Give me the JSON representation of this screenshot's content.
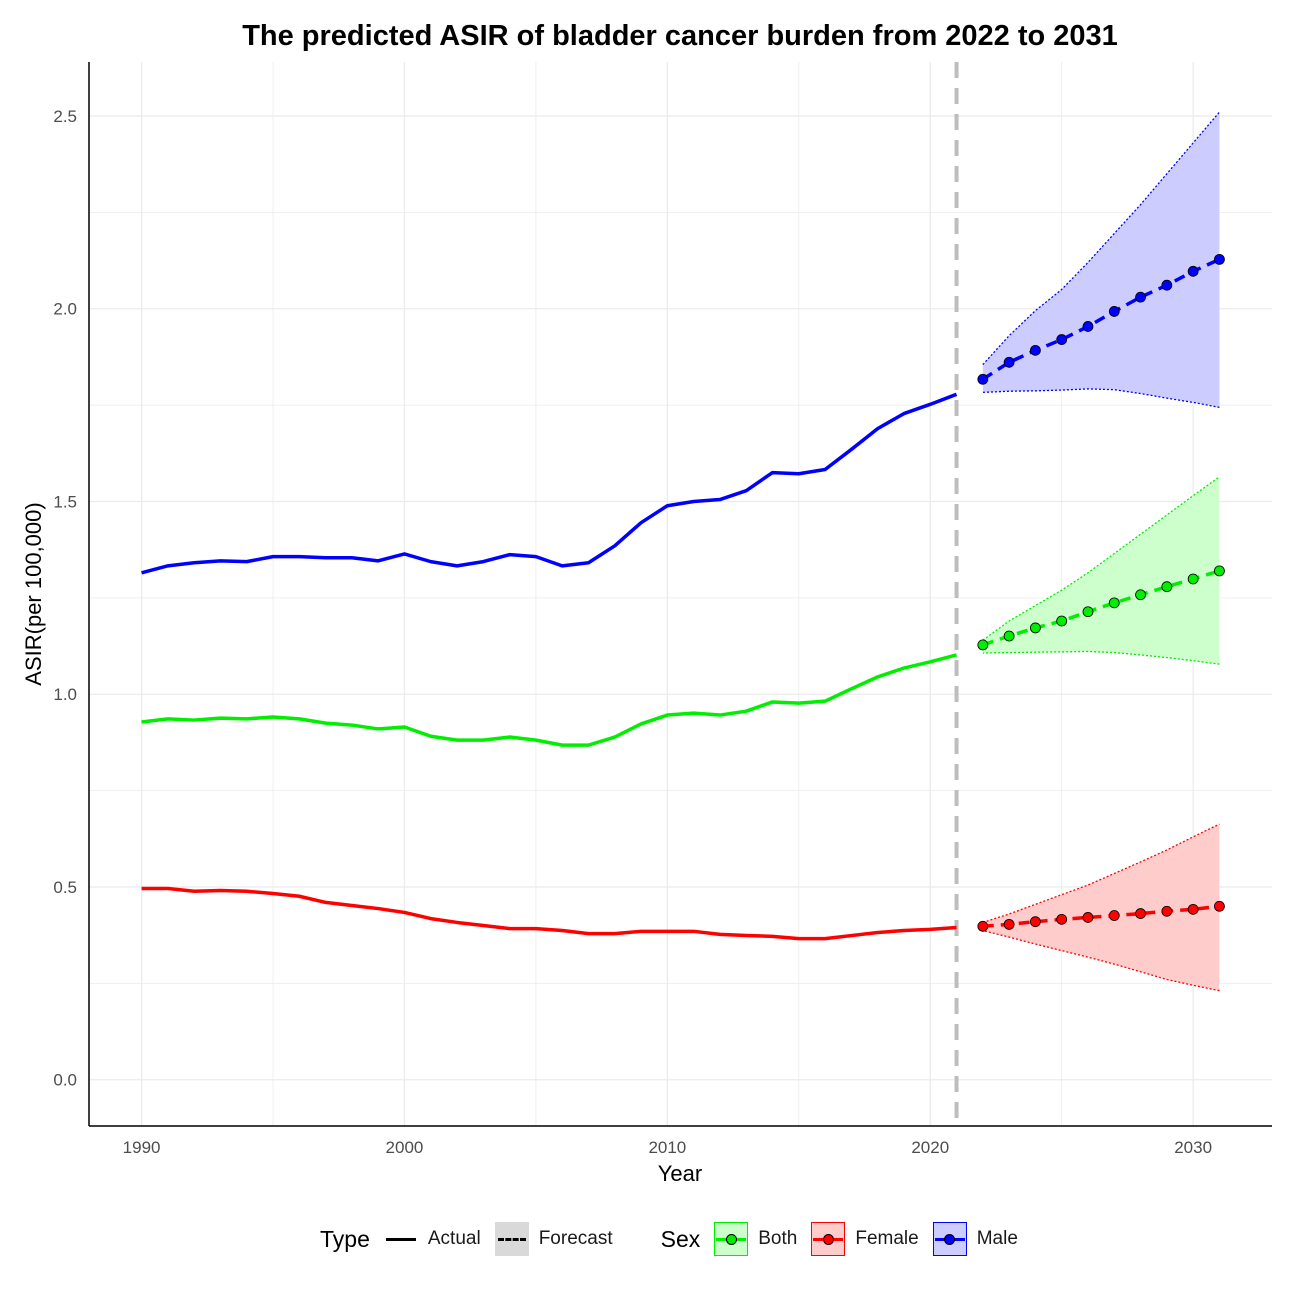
{
  "chart_data": {
    "type": "line",
    "title": "The predicted ASIR of bladder cancer burden from 2022 to 2031",
    "xlabel": "Year",
    "ylabel": "ASIR(per 100,000)",
    "xlim": [
      1988,
      2033
    ],
    "ylim": [
      -0.12,
      2.64
    ],
    "xticks": [
      1990,
      2000,
      2010,
      2020,
      2030
    ],
    "yticks": [
      "0.0",
      "0.5",
      "1.0",
      "1.5",
      "2.0",
      "2.5"
    ],
    "ytick_values": [
      0,
      0.5,
      1.0,
      1.5,
      2.0,
      2.5
    ],
    "forecast_start_line": 2021,
    "grid": true,
    "legend_position": "bottom",
    "actual_years": [
      1990,
      1991,
      1992,
      1993,
      1994,
      1995,
      1996,
      1997,
      1998,
      1999,
      2000,
      2001,
      2002,
      2003,
      2004,
      2005,
      2006,
      2007,
      2008,
      2009,
      2010,
      2011,
      2012,
      2013,
      2014,
      2015,
      2016,
      2017,
      2018,
      2019,
      2020,
      2021
    ],
    "forecast_years": [
      2022,
      2023,
      2024,
      2025,
      2026,
      2027,
      2028,
      2029,
      2030,
      2031
    ],
    "series": [
      {
        "name": "Male",
        "color": "#0000ff",
        "fill": "#ccccff",
        "actual": [
          1.315,
          1.333,
          1.341,
          1.346,
          1.344,
          1.357,
          1.357,
          1.354,
          1.354,
          1.346,
          1.364,
          1.344,
          1.333,
          1.344,
          1.362,
          1.357,
          1.333,
          1.341,
          1.385,
          1.445,
          1.489,
          1.5,
          1.505,
          1.528,
          1.575,
          1.572,
          1.583,
          1.635,
          1.689,
          1.728,
          1.752,
          1.778
        ],
        "forecast": [
          1.817,
          1.861,
          1.892,
          1.92,
          1.954,
          1.993,
          2.03,
          2.061,
          2.097,
          2.128
        ],
        "upper": [
          1.855,
          1.93,
          1.995,
          2.05,
          2.12,
          2.195,
          2.27,
          2.35,
          2.43,
          2.51
        ],
        "lower": [
          1.783,
          1.786,
          1.787,
          1.789,
          1.792,
          1.79,
          1.78,
          1.768,
          1.757,
          1.744
        ]
      },
      {
        "name": "Both",
        "color": "#00ee00",
        "fill": "#ccffcc",
        "actual": [
          0.928,
          0.936,
          0.933,
          0.938,
          0.936,
          0.941,
          0.936,
          0.925,
          0.92,
          0.91,
          0.915,
          0.891,
          0.881,
          0.881,
          0.889,
          0.881,
          0.868,
          0.868,
          0.889,
          0.923,
          0.946,
          0.951,
          0.946,
          0.956,
          0.98,
          0.977,
          0.982,
          1.014,
          1.045,
          1.068,
          1.084,
          1.102
        ],
        "forecast": [
          1.128,
          1.151,
          1.172,
          1.19,
          1.214,
          1.237,
          1.258,
          1.279,
          1.299,
          1.32
        ],
        "upper": [
          1.14,
          1.19,
          1.23,
          1.27,
          1.315,
          1.365,
          1.415,
          1.465,
          1.515,
          1.564
        ],
        "lower": [
          1.107,
          1.108,
          1.109,
          1.11,
          1.111,
          1.108,
          1.102,
          1.095,
          1.087,
          1.078
        ]
      },
      {
        "name": "Female",
        "color": "#ff0000",
        "fill": "#ffcccc",
        "actual": [
          0.496,
          0.496,
          0.489,
          0.491,
          0.489,
          0.483,
          0.476,
          0.46,
          0.452,
          0.444,
          0.434,
          0.418,
          0.408,
          0.4,
          0.392,
          0.392,
          0.387,
          0.379,
          0.379,
          0.385,
          0.385,
          0.385,
          0.377,
          0.374,
          0.372,
          0.366,
          0.366,
          0.374,
          0.382,
          0.387,
          0.39,
          0.395
        ],
        "forecast": [
          0.398,
          0.403,
          0.41,
          0.416,
          0.421,
          0.426,
          0.431,
          0.437,
          0.442,
          0.45
        ],
        "upper": [
          0.408,
          0.43,
          0.455,
          0.48,
          0.505,
          0.535,
          0.565,
          0.596,
          0.63,
          0.663
        ],
        "lower": [
          0.387,
          0.37,
          0.352,
          0.335,
          0.318,
          0.3,
          0.28,
          0.26,
          0.245,
          0.231
        ]
      }
    ],
    "legend": {
      "type_title": "Type",
      "type_items": [
        "Actual",
        "Forecast"
      ],
      "sex_title": "Sex",
      "sex_items": [
        "Both",
        "Female",
        "Male"
      ]
    }
  }
}
